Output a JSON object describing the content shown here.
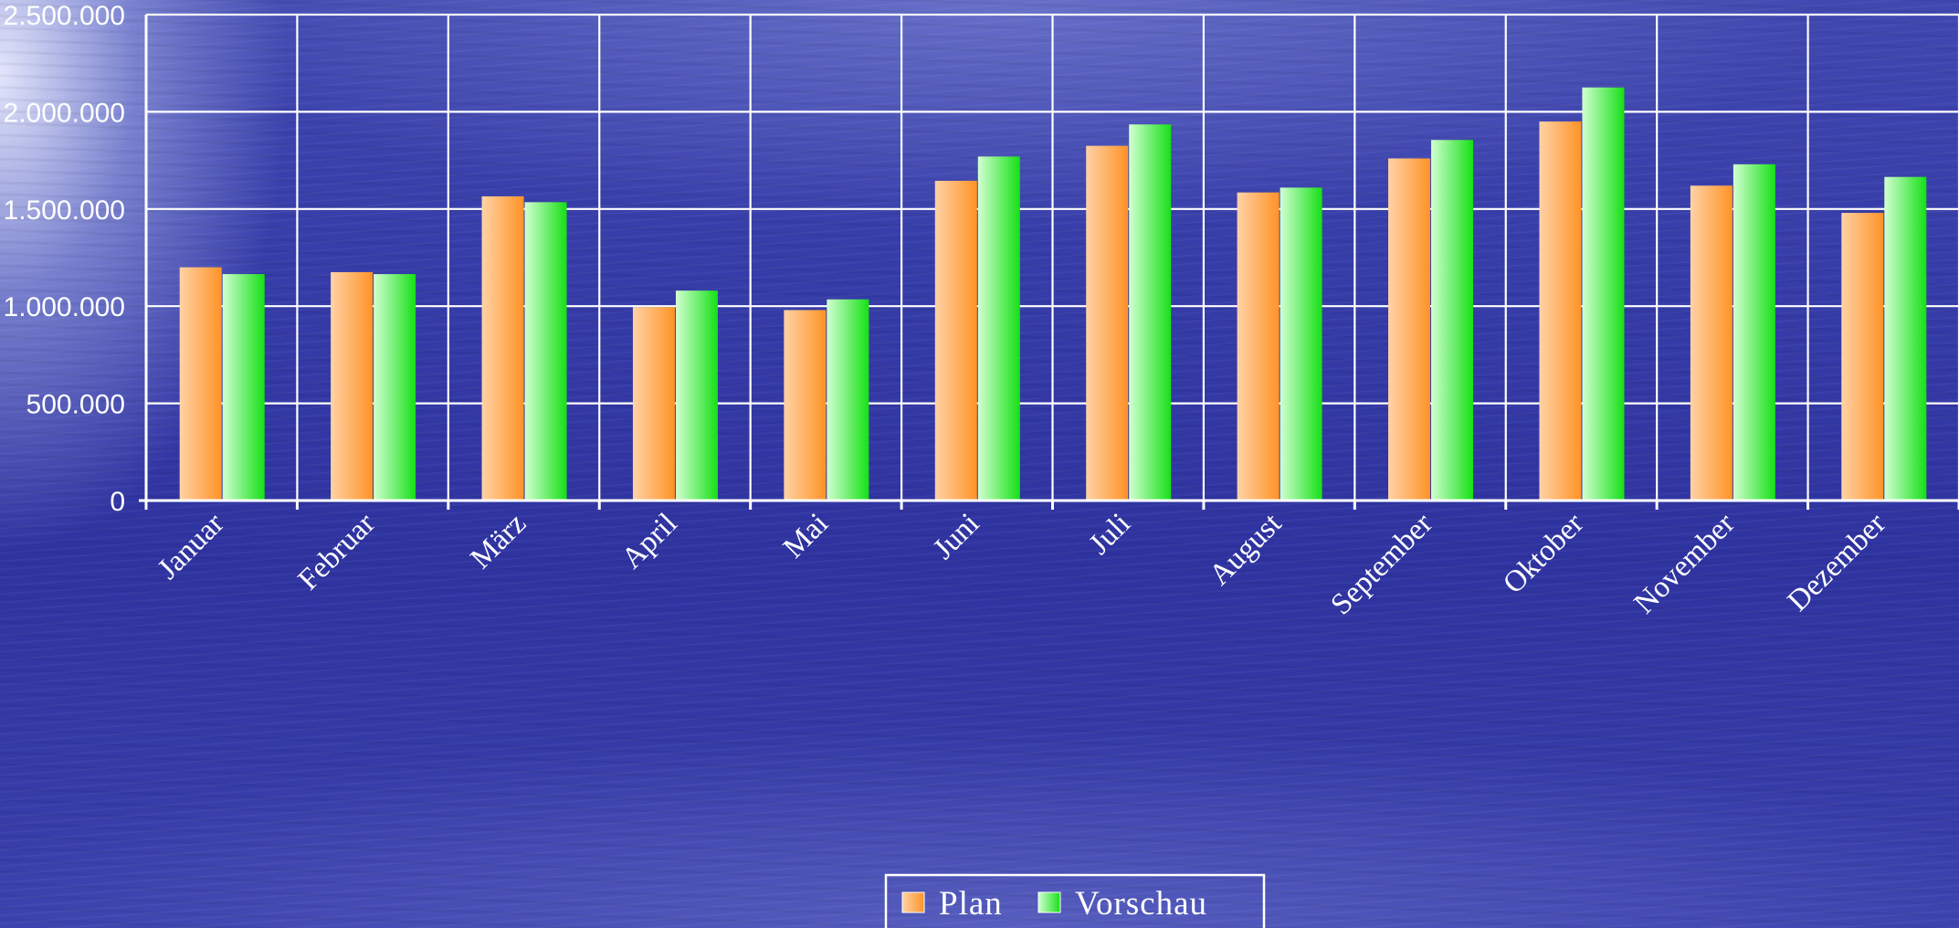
{
  "chart_data": {
    "type": "bar",
    "categories": [
      "Januar",
      "Februar",
      "März",
      "April",
      "Mai",
      "Juni",
      "Juli",
      "August",
      "September",
      "Oktober",
      "November",
      "Dezember"
    ],
    "series": [
      {
        "name": "Plan",
        "color_light": "#ffd2a6",
        "color_dark": "#ff9326",
        "values": [
          1200000,
          1175000,
          1565000,
          995000,
          980000,
          1645000,
          1825000,
          1585000,
          1760000,
          1950000,
          1620000,
          1480000
        ]
      },
      {
        "name": "Vorschau",
        "color_light": "#d2ffd2",
        "color_dark": "#16e016",
        "values": [
          1165000,
          1165000,
          1535000,
          1080000,
          1035000,
          1770000,
          1935000,
          1610000,
          1855000,
          2125000,
          1730000,
          1665000
        ]
      }
    ],
    "yticks": [
      "0",
      "500.000",
      "1.000.000",
      "1.500.000",
      "2.000.000",
      "2.500.000"
    ],
    "ylim": [
      0,
      2500000
    ],
    "grid": true,
    "legend": "bottom-center",
    "title": "",
    "xlabel": "",
    "ylabel": ""
  }
}
